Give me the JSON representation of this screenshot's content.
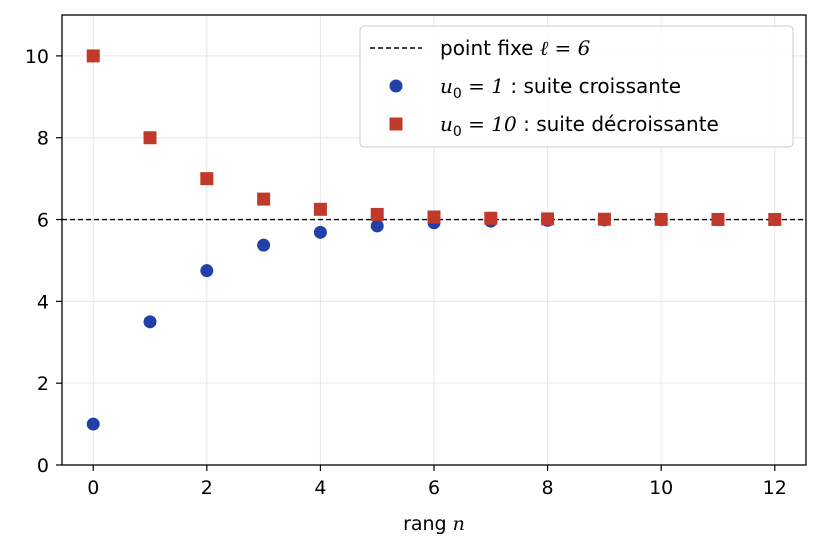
{
  "chart_data": {
    "type": "scatter",
    "xlabel_text": "rang ",
    "xlabel_var": "n",
    "xlim": [
      -0.55,
      12.55
    ],
    "ylim": [
      0,
      11
    ],
    "xticks": [
      0,
      2,
      4,
      6,
      8,
      10,
      12
    ],
    "yticks": [
      0,
      2,
      4,
      6,
      8,
      10
    ],
    "grid": true,
    "legend_position": "top-right",
    "reference_line": {
      "y": 6,
      "style": "dashed",
      "color": "#000000",
      "label_text": "point fixe ",
      "label_math": "ℓ = 6"
    },
    "series": [
      {
        "label_math": "u",
        "label_sub": "0",
        "label_eq": " = 1",
        "label_rest": " : suite croissante",
        "marker": "circle",
        "color": "#2340a8",
        "x": [
          0,
          1,
          2,
          3,
          4,
          5,
          6,
          7,
          8,
          9,
          10,
          11,
          12
        ],
        "y": [
          1,
          3.5,
          4.75,
          5.375,
          5.6875,
          5.84375,
          5.921875,
          5.9609375,
          5.98046875,
          5.990234375,
          5.9951171875,
          5.99755859375,
          5.998779296875
        ]
      },
      {
        "label_math": "u",
        "label_sub": "0",
        "label_eq": " = 10",
        "label_rest": " : suite décroissante",
        "marker": "square",
        "color": "#c0392b",
        "x": [
          0,
          1,
          2,
          3,
          4,
          5,
          6,
          7,
          8,
          9,
          10,
          11,
          12
        ],
        "y": [
          10,
          8,
          7,
          6.5,
          6.25,
          6.125,
          6.0625,
          6.03125,
          6.015625,
          6.0078125,
          6.00390625,
          6.001953125,
          6.0009765625
        ]
      }
    ]
  }
}
